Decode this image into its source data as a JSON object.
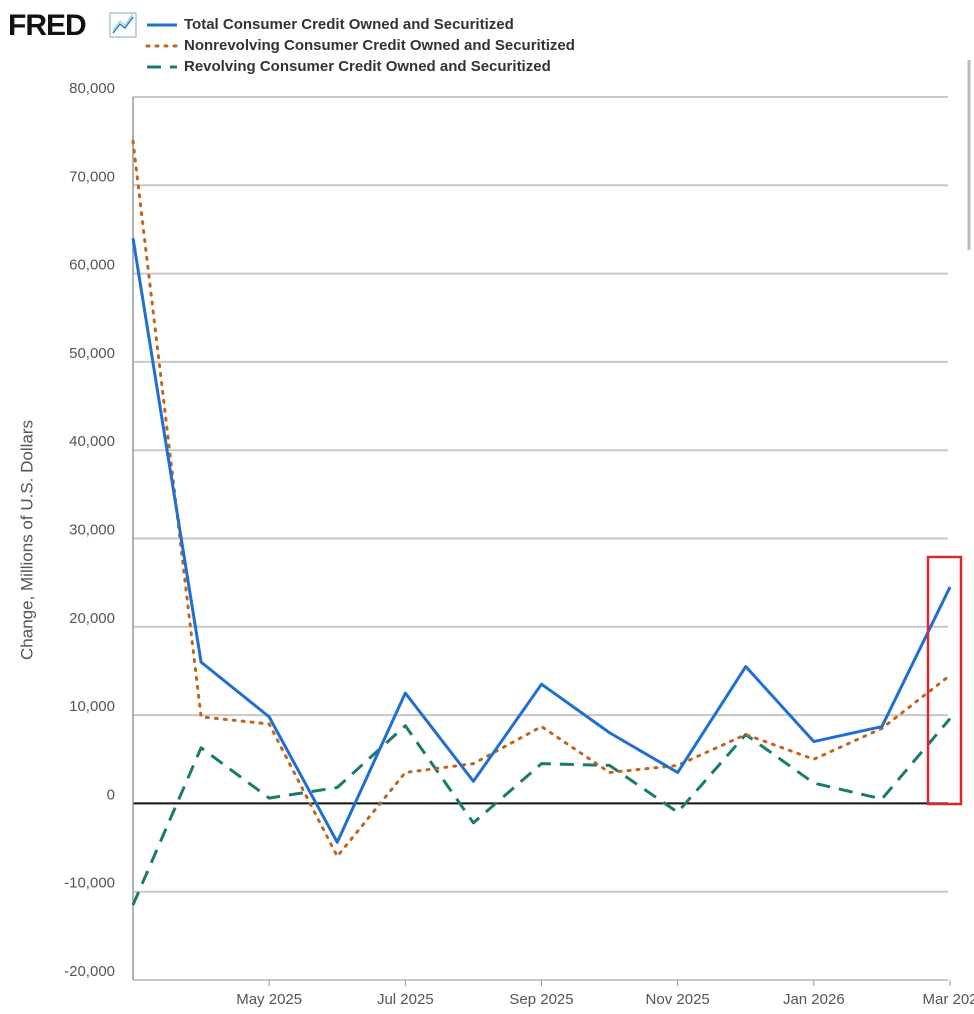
{
  "logo": "FRED",
  "chart_data": {
    "type": "line",
    "y_label": "Change, Millions of U.S. Dollars",
    "categories": [
      null,
      null,
      "May 2025",
      null,
      "Jul 2025",
      null,
      "Sep 2025",
      null,
      "Nov 2025",
      null,
      "Jan 2026",
      null,
      "Mar 202"
    ],
    "series": [
      {
        "name": "Total Consumer Credit Owned and Securitized",
        "color": "#1f6fd0",
        "style": "solid",
        "values": [
          64000,
          16000,
          9800,
          -4400,
          12500,
          2500,
          13500,
          8000,
          3500,
          15500,
          7000,
          8700,
          24500
        ]
      },
      {
        "name": "Nonrevolving Consumer Credit Owned and Securitized",
        "color": "#c0651c",
        "style": "dotted",
        "values": [
          75000,
          9800,
          9000,
          -6000,
          3500,
          4500,
          8700,
          3500,
          4300,
          7800,
          5000,
          8500,
          14500
        ]
      },
      {
        "name": "Revolving Consumer Credit Owned and Securitized",
        "color": "#1a7a6e",
        "style": "dashed",
        "values": [
          -11500,
          6300,
          600,
          1800,
          8800,
          -2200,
          4500,
          4300,
          -1000,
          7800,
          2300,
          500,
          9600
        ]
      }
    ],
    "ylim": [
      -20000,
      80000
    ],
    "yticks": [
      {
        "value": -20000,
        "label": "-20,000"
      },
      {
        "value": -10000,
        "label": "-10,000"
      },
      0,
      {
        "value": 10000,
        "label": "10,000"
      },
      {
        "value": 20000,
        "label": "20,000"
      },
      {
        "value": 30000,
        "label": "30,000"
      },
      {
        "value": 40000,
        "label": "40,000"
      },
      {
        "value": 50000,
        "label": "50,000"
      },
      {
        "value": 60000,
        "label": "60,000"
      },
      {
        "value": 70000,
        "label": "70,000"
      },
      {
        "value": 80000,
        "label": "80,000"
      }
    ],
    "grid": true
  }
}
